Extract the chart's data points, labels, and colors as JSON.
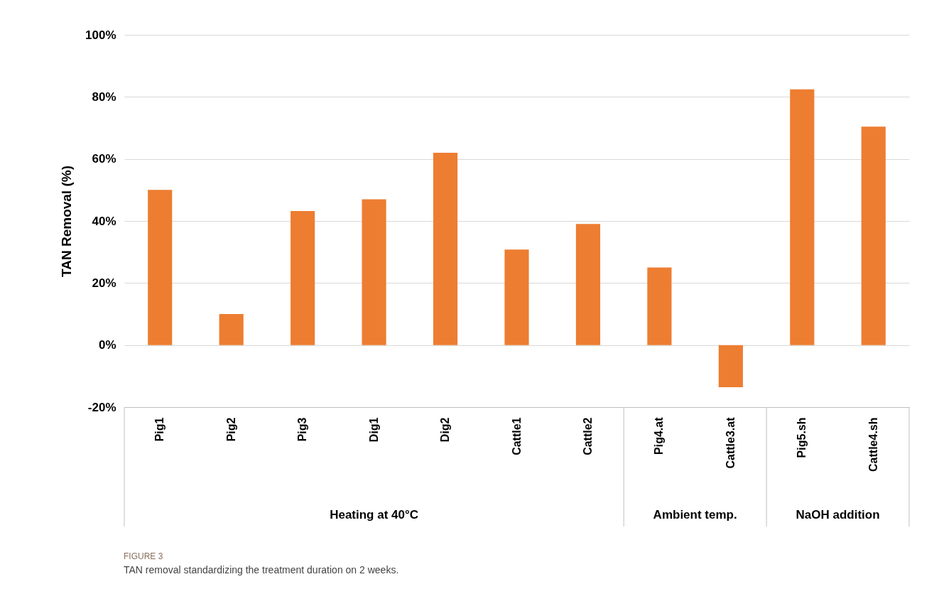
{
  "chart_data": {
    "type": "bar",
    "categories": [
      "Pig1",
      "Pig2",
      "Pig3",
      "Dig1",
      "Dig2",
      "Cattle1",
      "Cattle2",
      "Pig4.at",
      "Cattle3.at",
      "Pig5.sh",
      "Cattle4.sh"
    ],
    "values": [
      50,
      10,
      43.2,
      47,
      62,
      30.8,
      39,
      25,
      -13.6,
      82.4,
      70.4
    ],
    "color": "#ed7d31",
    "ylabel": "TAN Removal (%)",
    "ylim": [
      -20,
      100
    ],
    "yticks": [
      {
        "value": -20,
        "label": "-20%"
      },
      {
        "value": 0,
        "label": "0%"
      },
      {
        "value": 20,
        "label": "20%"
      },
      {
        "value": 40,
        "label": "40%"
      },
      {
        "value": 60,
        "label": "60%"
      },
      {
        "value": 80,
        "label": "80%"
      },
      {
        "value": 100,
        "label": "100%"
      }
    ],
    "grid": "y",
    "annotations": [
      "Heating at 40°C",
      "Ambient temp.",
      "NaOH addition",
      "FIGURE 3",
      "TAN removal standardizing the treatment duration on 2 weeks."
    ]
  }
}
